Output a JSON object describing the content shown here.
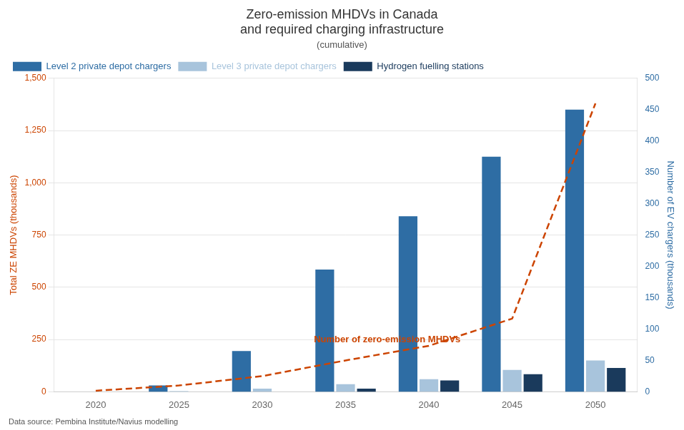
{
  "chart_data": {
    "type": "bar",
    "title": [
      "Zero-emission MHDVs in Canada",
      "and required charging infrastructure"
    ],
    "subtitle": "(cumulative)",
    "ylabel": "Total ZE MHDVs (thousands)",
    "y2label": "Number of EV chargers (thousands)",
    "categories": [
      2020,
      2025,
      2030,
      2035,
      2040,
      2045,
      2050
    ],
    "series": [
      {
        "name": "Level 2 private depot chargers",
        "color": "#2E6DA4",
        "axis": "y2",
        "values": [
          0,
          10,
          65,
          195,
          280,
          375,
          450
        ]
      },
      {
        "name": "Level 3 private depot chargers",
        "color": "#A8C4DC",
        "axis": "y2",
        "values": [
          0,
          1,
          5,
          12,
          20,
          35,
          50
        ]
      },
      {
        "name": "Hydrogen fuelling stations",
        "color": "#1A3A5C",
        "axis": "y2",
        "values": [
          0,
          0,
          0,
          5,
          18,
          28,
          38
        ]
      },
      {
        "type": "line",
        "color": "#CC4400",
        "line_style": "dashed",
        "values": [
          5,
          30,
          75,
          150,
          220,
          350,
          1380
        ]
      }
    ],
    "ylim": [
      0,
      1500
    ],
    "yticks": [
      0,
      250,
      500,
      750,
      {
        "value": 1000,
        "label": "1,000"
      },
      {
        "value": 1250,
        "label": "1,250"
      },
      {
        "value": 1500,
        "label": "1,500"
      }
    ],
    "y2lim": [
      0,
      500
    ],
    "y2ticks": [
      0,
      50,
      100,
      150,
      200,
      250,
      300,
      350,
      400,
      450,
      500
    ],
    "annotations": [
      {
        "text": "Number of zero-emission MHDVs",
        "x": 2037.5,
        "y": 220,
        "color": "#CC4400"
      },
      {
        "text": "Data source: Pembina Institute/Navius modelling"
      }
    ],
    "grid": true,
    "legend": "upper left"
  }
}
